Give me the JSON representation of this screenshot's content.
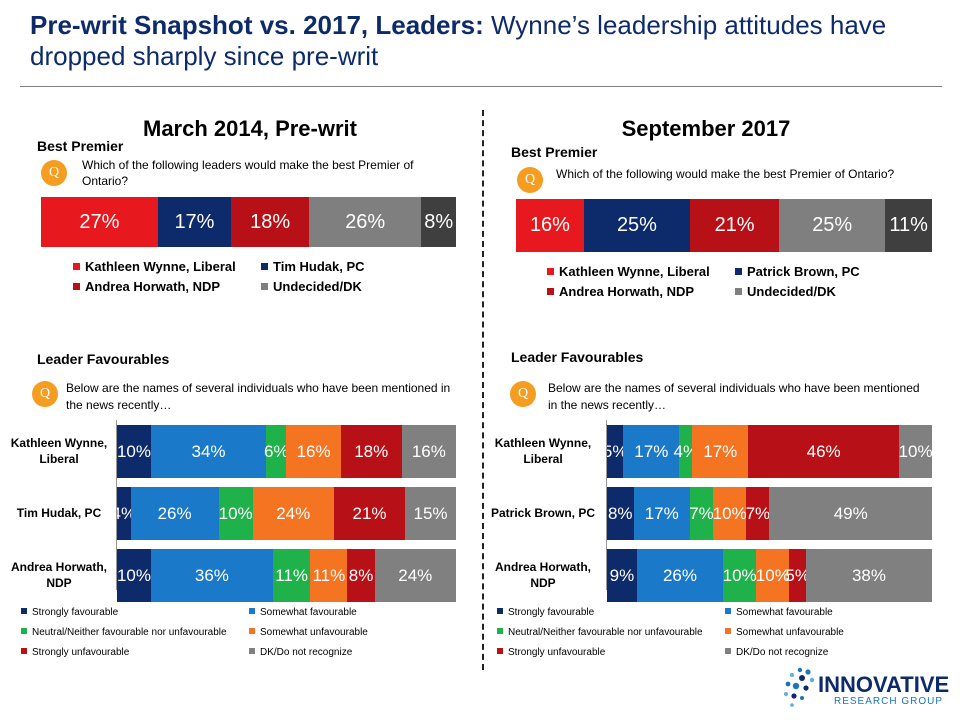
{
  "header": {
    "title_bold": "Pre-writ Snapshot vs. 2017, Leaders:",
    "title_rest": " Wynne’s leadership attitudes have dropped sharply since pre-writ"
  },
  "colors": {
    "liberal_red": "#e8191e",
    "pc_navy": "#0d2b6b",
    "ndp_darkred": "#b71117",
    "undecided_gray": "#7f7f7f",
    "strongly_fav": "#0d2b6b",
    "somewhat_fav": "#1a7ac9",
    "neutral": "#1fb24a",
    "somewhat_unfav": "#f47421",
    "strongly_unfav": "#b71117",
    "dk": "#808080",
    "accent_orange": "#f59d21"
  },
  "panels": [
    {
      "title": "March 2014, Pre-writ",
      "best_premier": {
        "section_title": "Best Premier",
        "q_icon": "Q",
        "question": "Which of the following leaders would make the best Premier of Ontario?",
        "legend": [
          "Kathleen Wynne, Liberal",
          "Tim Hudak, PC",
          "Andrea Horwath, NDP",
          "Undecided/DK"
        ]
      },
      "favourables": {
        "section_title": "Leader Favourables",
        "q_icon": "Q",
        "question": "Below are the names of several individuals who have been mentioned in the news recently…",
        "legend": [
          "Strongly favourable",
          "Somewhat favourable",
          "Neutral/Neither favourable nor unfavourable",
          "Somewhat unfavourable",
          "Strongly unfavourable",
          "DK/Do not recognize"
        ]
      }
    },
    {
      "title": "September 2017",
      "best_premier": {
        "section_title": "Best Premier",
        "q_icon": "Q",
        "question": "Which of the following would make the best Premier of Ontario?",
        "legend": [
          "Kathleen Wynne, Liberal",
          "Patrick Brown, PC",
          "Andrea Horwath, NDP",
          "Undecided/DK"
        ]
      },
      "favourables": {
        "section_title": "Leader Favourables",
        "q_icon": "Q",
        "question": "Below are the names of several individuals who have been mentioned in the news recently…",
        "legend": [
          "Strongly favourable",
          "Somewhat favourable",
          "Neutral/Neither favourable nor unfavourable",
          "Somewhat unfavourable",
          "Strongly unfavourable",
          "DK/Do not recognize"
        ]
      }
    }
  ],
  "chart_data": [
    {
      "type": "bar",
      "title": "Best Premier",
      "panel": "March 2014, Pre-writ",
      "stacked": true,
      "orientation": "horizontal",
      "categories": [
        "Best Premier"
      ],
      "series": [
        {
          "name": "Kathleen Wynne, Liberal",
          "values": [
            27
          ],
          "labels": [
            "27%"
          ],
          "color": "#e8191e"
        },
        {
          "name": "Tim Hudak, PC",
          "values": [
            17
          ],
          "labels": [
            "17%"
          ],
          "color": "#0d2b6b"
        },
        {
          "name": "Andrea Horwath, NDP",
          "values": [
            18
          ],
          "labels": [
            "18%"
          ],
          "color": "#b71117"
        },
        {
          "name": "Undecided/DK",
          "values": [
            26
          ],
          "labels": [
            "26%"
          ],
          "color": "#7f7f7f"
        },
        {
          "name": "",
          "values": [
            8
          ],
          "labels": [
            "8%"
          ],
          "color": "#3f3f3f"
        }
      ]
    },
    {
      "type": "bar",
      "title": "Best Premier",
      "panel": "September 2017",
      "stacked": true,
      "orientation": "horizontal",
      "categories": [
        "Best Premier"
      ],
      "series": [
        {
          "name": "Kathleen Wynne, Liberal",
          "values": [
            16
          ],
          "labels": [
            "16%"
          ],
          "color": "#e8191e"
        },
        {
          "name": "Patrick Brown, PC",
          "values": [
            25
          ],
          "labels": [
            "25%"
          ],
          "color": "#0d2b6b"
        },
        {
          "name": "Andrea Horwath, NDP",
          "values": [
            21
          ],
          "labels": [
            "21%"
          ],
          "color": "#b71117"
        },
        {
          "name": "Undecided/DK",
          "values": [
            25
          ],
          "labels": [
            "25%"
          ],
          "color": "#7f7f7f"
        },
        {
          "name": "",
          "values": [
            11
          ],
          "labels": [
            "11%"
          ],
          "color": "#3f3f3f"
        }
      ]
    },
    {
      "type": "bar",
      "title": "Leader Favourables",
      "panel": "March 2014, Pre-writ",
      "stacked": true,
      "orientation": "horizontal",
      "categories": [
        "Kathleen Wynne, Liberal",
        "Tim Hudak, PC",
        "Andrea Horwath, NDP"
      ],
      "series": [
        {
          "name": "Strongly favourable",
          "values": [
            10,
            4,
            10
          ],
          "labels": [
            "10%",
            "4%",
            "10%"
          ],
          "color": "#0d2b6b"
        },
        {
          "name": "Somewhat favourable",
          "values": [
            34,
            26,
            36
          ],
          "labels": [
            "34%",
            "26%",
            "36%"
          ],
          "color": "#1a7ac9"
        },
        {
          "name": "Neutral/Neither favourable nor unfavourable",
          "values": [
            6,
            10,
            11
          ],
          "labels": [
            "6%",
            "10%",
            "11%"
          ],
          "color": "#1fb24a"
        },
        {
          "name": "Somewhat unfavourable",
          "values": [
            16,
            24,
            11
          ],
          "labels": [
            "16%",
            "24%",
            "11%"
          ],
          "color": "#f47421"
        },
        {
          "name": "Strongly unfavourable",
          "values": [
            18,
            21,
            8
          ],
          "labels": [
            "18%",
            "21%",
            "8%"
          ],
          "color": "#b71117"
        },
        {
          "name": "DK/Do not recognize",
          "values": [
            16,
            15,
            24
          ],
          "labels": [
            "16%",
            "15%",
            "24%"
          ],
          "color": "#808080"
        }
      ]
    },
    {
      "type": "bar",
      "title": "Leader Favourables",
      "panel": "September 2017",
      "stacked": true,
      "orientation": "horizontal",
      "categories": [
        "Kathleen Wynne, Liberal",
        "Patrick Brown, PC",
        "Andrea Horwath, NDP"
      ],
      "series": [
        {
          "name": "Strongly favourable",
          "values": [
            5,
            8,
            9
          ],
          "labels": [
            "5%",
            "8%",
            "9%"
          ],
          "color": "#0d2b6b"
        },
        {
          "name": "Somewhat favourable",
          "values": [
            17,
            17,
            26
          ],
          "labels": [
            "17%",
            "17%",
            "26%"
          ],
          "color": "#1a7ac9"
        },
        {
          "name": "Neutral/Neither favourable nor unfavourable",
          "values": [
            4,
            7,
            10
          ],
          "labels": [
            "4%",
            "7%",
            "10%"
          ],
          "color": "#1fb24a"
        },
        {
          "name": "Somewhat unfavourable",
          "values": [
            17,
            10,
            10
          ],
          "labels": [
            "17%",
            "10%",
            "10%"
          ],
          "color": "#f47421"
        },
        {
          "name": "Strongly unfavourable",
          "values": [
            46,
            7,
            5
          ],
          "labels": [
            "46%",
            "7%",
            "5%"
          ],
          "color": "#b71117"
        },
        {
          "name": "DK/Do not recognize",
          "values": [
            10,
            49,
            38
          ],
          "labels": [
            "10%",
            "49%",
            "38%"
          ],
          "color": "#808080"
        }
      ]
    }
  ],
  "logo": {
    "name": "INNOVATIVE",
    "sub": "RESEARCH GROUP"
  }
}
